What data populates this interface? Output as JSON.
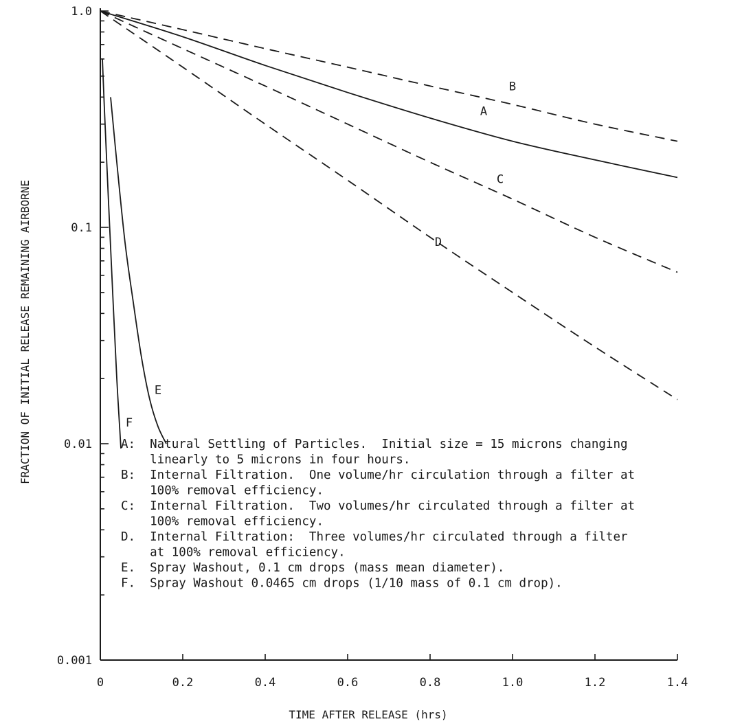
{
  "chart_data": {
    "type": "line",
    "title": "",
    "xlabel": "TIME AFTER RELEASE (hrs)",
    "ylabel": "FRACTION OF INITIAL RELEASE REMAINING AIRBORNE",
    "xlim": [
      0,
      1.4
    ],
    "ylim": [
      0.001,
      1.0
    ],
    "yscale": "log",
    "grid": false,
    "x_ticks": [
      {
        "value": 0,
        "label": "0"
      },
      {
        "value": 0.2,
        "label": "0.2"
      },
      {
        "value": 0.4,
        "label": "0.4"
      },
      {
        "value": 0.6,
        "label": "0.6"
      },
      {
        "value": 0.8,
        "label": "0.8"
      },
      {
        "value": 1.0,
        "label": "1.0"
      },
      {
        "value": 1.2,
        "label": "1.2"
      },
      {
        "value": 1.4,
        "label": "1.4"
      }
    ],
    "y_ticks": [
      {
        "value": 0.001,
        "label": "0.001"
      },
      {
        "value": 0.01,
        "label": "0.01"
      },
      {
        "value": 0.1,
        "label": "0.1"
      },
      {
        "value": 1.0,
        "label": "1.0"
      }
    ],
    "series": [
      {
        "name": "A",
        "style": "solid",
        "x": [
          0,
          0.2,
          0.4,
          0.6,
          0.8,
          1.0,
          1.2,
          1.4
        ],
        "y": [
          1.0,
          0.76,
          0.56,
          0.42,
          0.32,
          0.25,
          0.205,
          0.17
        ],
        "label_pos": {
          "x": 0.93,
          "y": 0.33
        }
      },
      {
        "name": "B",
        "style": "dashed",
        "x": [
          0,
          0.2,
          0.4,
          0.6,
          0.8,
          1.0,
          1.2,
          1.4
        ],
        "y": [
          1.0,
          0.82,
          0.67,
          0.55,
          0.45,
          0.37,
          0.3,
          0.25
        ],
        "label_pos": {
          "x": 1.0,
          "y": 0.43
        }
      },
      {
        "name": "C",
        "style": "dashed",
        "x": [
          0,
          0.2,
          0.4,
          0.6,
          0.8,
          1.0,
          1.2,
          1.4
        ],
        "y": [
          1.0,
          0.67,
          0.45,
          0.3,
          0.2,
          0.135,
          0.09,
          0.062
        ],
        "label_pos": {
          "x": 0.97,
          "y": 0.16
        }
      },
      {
        "name": "D",
        "style": "dashed",
        "x": [
          0,
          0.2,
          0.4,
          0.6,
          0.8,
          1.0,
          1.2,
          1.4
        ],
        "y": [
          1.0,
          0.55,
          0.3,
          0.165,
          0.09,
          0.05,
          0.028,
          0.016
        ],
        "label_pos": {
          "x": 0.82,
          "y": 0.082
        }
      },
      {
        "name": "E",
        "style": "solid",
        "x": [
          0.025,
          0.04,
          0.06,
          0.08,
          0.1,
          0.12,
          0.14,
          0.16
        ],
        "y": [
          0.4,
          0.2,
          0.085,
          0.045,
          0.025,
          0.016,
          0.012,
          0.01
        ],
        "label_pos": {
          "x": 0.14,
          "y": 0.017
        }
      },
      {
        "name": "F",
        "style": "solid",
        "x": [
          0.005,
          0.01,
          0.02,
          0.03,
          0.04,
          0.05
        ],
        "y": [
          0.6,
          0.35,
          0.13,
          0.05,
          0.02,
          0.0095
        ],
        "label_pos": {
          "x": 0.07,
          "y": 0.012
        }
      }
    ],
    "legend": {
      "placement": "inside-lower-center",
      "lines": [
        "A:  Natural Settling of Particles.  Initial size = 15 microns changing",
        "    linearly to 5 microns in four hours.",
        "B:  Internal Filtration.  One volume/hr circulation through a filter at",
        "    100% removal efficiency.",
        "C:  Internal Filtration.  Two volumes/hr circulated through a filter at",
        "    100% removal efficiency.",
        "D.  Internal Filtration:  Three volumes/hr circulated through a filter",
        "    at 100% removal efficiency.",
        "E.  Spray Washout, 0.1 cm drops (mass mean diameter).",
        "F.  Spray Washout 0.0465 cm drops (1/10 mass of 0.1 cm drop)."
      ]
    }
  }
}
